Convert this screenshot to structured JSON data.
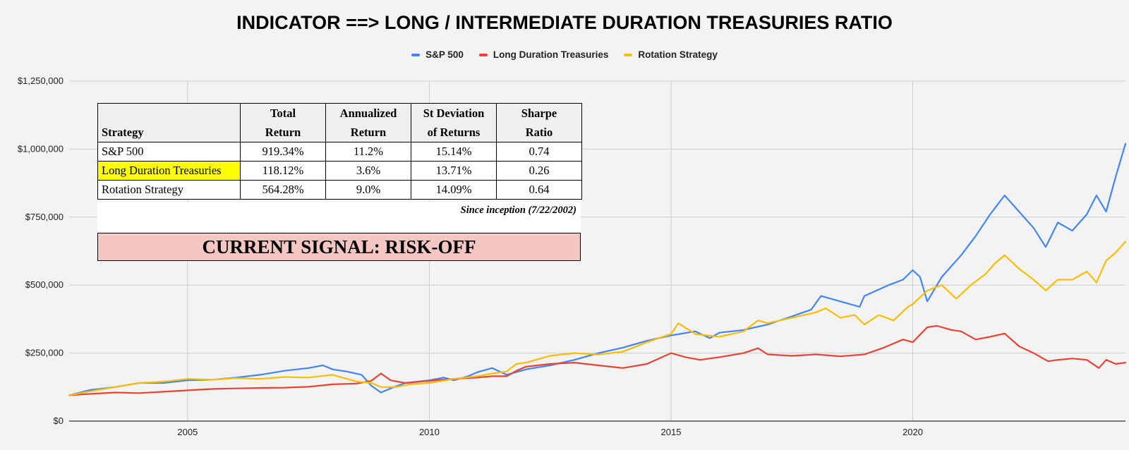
{
  "chart_data": {
    "type": "line",
    "title": "INDICATOR ==> LONG / INTERMEDIATE DURATION TREASURIES RATIO",
    "ylim": [
      0,
      1250000
    ],
    "yticks": [
      0,
      250000,
      500000,
      750000,
      1000000,
      1250000
    ],
    "ytick_labels": [
      "$0",
      "$250,000",
      "$500,000",
      "$750,000",
      "$1,000,000",
      "$1,250,000"
    ],
    "xlim": [
      2002.55,
      2024.4
    ],
    "xticks": [
      2005,
      2010,
      2015,
      2020
    ],
    "xtick_labels": [
      "2005",
      "2010",
      "2015",
      "2020"
    ],
    "grid": true,
    "legend_position": "top-center",
    "series": [
      {
        "name": "S&P 500",
        "color": "#4285f4",
        "x": [
          2002.55,
          2003.0,
          2003.5,
          2004.0,
          2004.5,
          2005.0,
          2005.5,
          2006.0,
          2006.5,
          2007.0,
          2007.5,
          2007.8,
          2008.0,
          2008.3,
          2008.6,
          2008.8,
          2009.0,
          2009.2,
          2009.5,
          2010.0,
          2010.3,
          2010.5,
          2010.8,
          2011.0,
          2011.3,
          2011.6,
          2011.8,
          2012.0,
          2012.5,
          2013.0,
          2013.5,
          2014.0,
          2014.5,
          2015.0,
          2015.5,
          2015.8,
          2016.0,
          2016.5,
          2017.0,
          2017.5,
          2017.9,
          2018.1,
          2018.5,
          2018.9,
          2019.0,
          2019.5,
          2019.8,
          2020.0,
          2020.15,
          2020.3,
          2020.6,
          2021.0,
          2021.3,
          2021.6,
          2021.9,
          2022.2,
          2022.5,
          2022.75,
          2023.0,
          2023.3,
          2023.6,
          2023.8,
          2024.0,
          2024.2,
          2024.4
        ],
        "values": [
          95000,
          115000,
          125000,
          140000,
          140000,
          150000,
          152000,
          160000,
          170000,
          185000,
          195000,
          205000,
          190000,
          182000,
          170000,
          130000,
          105000,
          120000,
          140000,
          150000,
          160000,
          150000,
          165000,
          180000,
          195000,
          170000,
          180000,
          190000,
          205000,
          225000,
          250000,
          270000,
          295000,
          315000,
          330000,
          305000,
          325000,
          335000,
          355000,
          385000,
          410000,
          460000,
          440000,
          420000,
          460000,
          500000,
          520000,
          555000,
          530000,
          440000,
          530000,
          610000,
          680000,
          760000,
          830000,
          770000,
          710000,
          640000,
          730000,
          700000,
          760000,
          830000,
          770000,
          900000,
          1020000
        ]
      },
      {
        "name": "Long Duration Treasuries",
        "color": "#ea4335",
        "x": [
          2002.55,
          2003.0,
          2003.5,
          2004.0,
          2004.5,
          2005.0,
          2005.5,
          2006.0,
          2006.5,
          2007.0,
          2007.5,
          2008.0,
          2008.5,
          2008.8,
          2009.0,
          2009.2,
          2009.5,
          2010.0,
          2010.5,
          2011.0,
          2011.3,
          2011.6,
          2011.8,
          2012.0,
          2012.5,
          2013.0,
          2013.5,
          2014.0,
          2014.5,
          2015.0,
          2015.3,
          2015.6,
          2016.0,
          2016.5,
          2016.8,
          2017.0,
          2017.5,
          2018.0,
          2018.5,
          2019.0,
          2019.4,
          2019.8,
          2020.0,
          2020.3,
          2020.5,
          2020.8,
          2021.0,
          2021.3,
          2021.6,
          2021.9,
          2022.2,
          2022.5,
          2022.8,
          2023.0,
          2023.3,
          2023.6,
          2023.85,
          2024.0,
          2024.2,
          2024.4
        ],
        "values": [
          95000,
          100000,
          105000,
          103000,
          108000,
          113000,
          118000,
          120000,
          122000,
          123000,
          126000,
          135000,
          138000,
          148000,
          175000,
          150000,
          140000,
          148000,
          155000,
          160000,
          165000,
          165000,
          185000,
          200000,
          210000,
          215000,
          205000,
          195000,
          210000,
          250000,
          235000,
          225000,
          235000,
          250000,
          268000,
          245000,
          240000,
          245000,
          238000,
          245000,
          270000,
          300000,
          290000,
          345000,
          350000,
          335000,
          330000,
          300000,
          310000,
          322000,
          275000,
          250000,
          220000,
          225000,
          230000,
          225000,
          195000,
          225000,
          210000,
          215000
        ]
      },
      {
        "name": "Rotation Strategy",
        "color": "#fbbc04",
        "x": [
          2002.55,
          2003.0,
          2003.5,
          2004.0,
          2004.5,
          2005.0,
          2005.5,
          2006.0,
          2006.5,
          2007.0,
          2007.5,
          2008.0,
          2008.5,
          2008.8,
          2009.0,
          2009.3,
          2009.6,
          2010.0,
          2010.5,
          2011.0,
          2011.3,
          2011.6,
          2011.8,
          2012.0,
          2012.5,
          2013.0,
          2013.5,
          2014.0,
          2014.5,
          2015.0,
          2015.15,
          2015.5,
          2016.0,
          2016.5,
          2016.8,
          2017.0,
          2017.5,
          2018.0,
          2018.2,
          2018.5,
          2018.8,
          2019.0,
          2019.3,
          2019.6,
          2019.9,
          2020.0,
          2020.3,
          2020.6,
          2020.9,
          2021.2,
          2021.5,
          2021.7,
          2021.9,
          2022.2,
          2022.5,
          2022.75,
          2023.0,
          2023.3,
          2023.6,
          2023.8,
          2024.0,
          2024.2,
          2024.4
        ],
        "values": [
          95000,
          110000,
          125000,
          140000,
          145000,
          155000,
          152000,
          158000,
          155000,
          162000,
          160000,
          170000,
          145000,
          140000,
          125000,
          125000,
          135000,
          140000,
          155000,
          165000,
          175000,
          182000,
          210000,
          215000,
          240000,
          250000,
          245000,
          255000,
          290000,
          320000,
          360000,
          320000,
          310000,
          330000,
          370000,
          360000,
          380000,
          400000,
          415000,
          380000,
          390000,
          355000,
          390000,
          370000,
          420000,
          430000,
          480000,
          500000,
          450000,
          500000,
          540000,
          580000,
          610000,
          560000,
          520000,
          480000,
          520000,
          520000,
          550000,
          510000,
          590000,
          620000,
          660000
        ]
      }
    ]
  },
  "table": {
    "headers": [
      {
        "l1": "",
        "l2": "Strategy"
      },
      {
        "l1": "Total",
        "l2": "Return"
      },
      {
        "l1": "Annualized",
        "l2": "Return"
      },
      {
        "l1": "St Deviation",
        "l2": "of Returns"
      },
      {
        "l1": "Sharpe",
        "l2": "Ratio"
      }
    ],
    "rows": [
      {
        "name": "S&P 500",
        "total": "919.34%",
        "annualized": "11.2%",
        "stdev": "15.14%",
        "sharpe": "0.74"
      },
      {
        "name": "Long Duration Treasuries",
        "total": "118.12%",
        "annualized": "3.6%",
        "stdev": "13.71%",
        "sharpe": "0.26"
      },
      {
        "name": "Rotation Strategy",
        "total": "564.28%",
        "annualized": "9.0%",
        "stdev": "14.09%",
        "sharpe": "0.64"
      }
    ],
    "note": "Since inception (7/22/2002)"
  },
  "signal": "CURRENT SIGNAL: RISK-OFF",
  "colors": {
    "highlight": "#ffff00",
    "signal_bg": "#f4c7c3",
    "grid": "#cccccc",
    "background": "#f3f3f3"
  }
}
